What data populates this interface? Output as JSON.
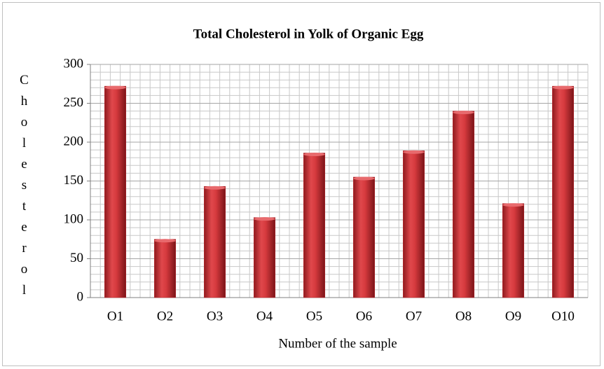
{
  "chart_data": {
    "type": "bar",
    "title": "Total Cholesterol in Yolk of Organic Egg",
    "x_label": "Number of the sample",
    "y_label": "Cholesterol",
    "categories": [
      "O1",
      "O2",
      "O3",
      "O4",
      "O5",
      "O6",
      "O7",
      "O8",
      "O9",
      "O10"
    ],
    "values": [
      272,
      75,
      143,
      103,
      186,
      155,
      189,
      240,
      121,
      272
    ],
    "color": "#c0272d",
    "ylim": [
      0,
      300
    ],
    "yticks": [
      0,
      50,
      100,
      150,
      200,
      250,
      300
    ],
    "grid": true
  }
}
